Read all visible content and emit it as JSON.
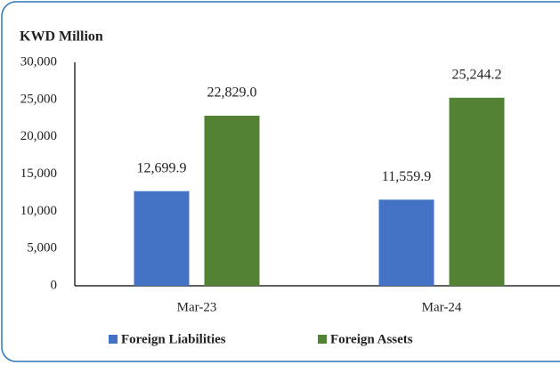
{
  "chart_data": {
    "type": "bar",
    "title": "KWD Million",
    "categories": [
      "Mar-23",
      "Mar-24"
    ],
    "series": [
      {
        "name": "Foreign Liabilities",
        "color": "#4472c4",
        "values": [
          12699.9,
          11559.9
        ],
        "value_labels": [
          "12,699.9",
          "11,559.9"
        ]
      },
      {
        "name": "Foreign Assets",
        "color": "#548235",
        "values": [
          22829.0,
          25244.2
        ],
        "value_labels": [
          "22,829.0",
          "25,244.2"
        ]
      }
    ],
    "ylim": [
      0,
      30000
    ],
    "yticks": [
      0,
      {
        "value": 5000,
        "label": "5,000"
      },
      {
        "value": 10000,
        "label": "10,000"
      },
      {
        "value": 15000,
        "label": "15,000"
      },
      {
        "value": 20000,
        "label": "20,000"
      },
      {
        "value": 25000,
        "label": "25,000"
      },
      {
        "value": 30000,
        "label": "30,000"
      }
    ],
    "grid": false,
    "legend": "bottom"
  }
}
